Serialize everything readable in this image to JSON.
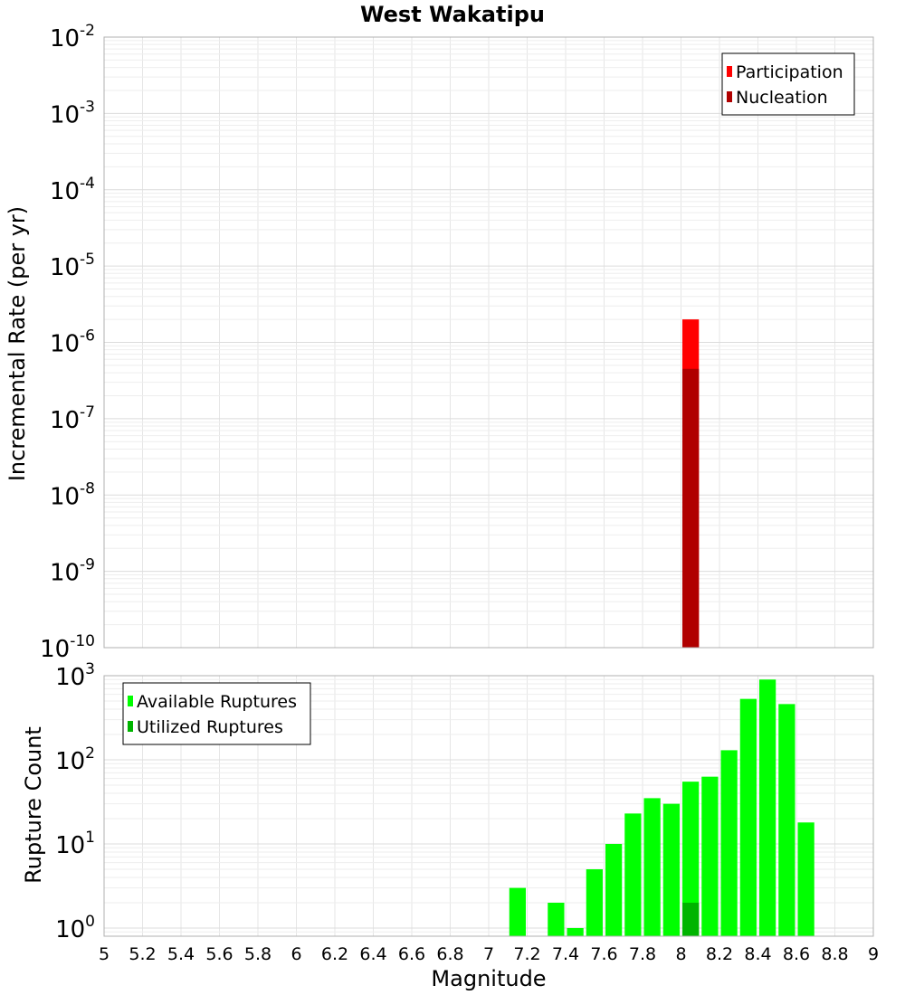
{
  "chart_data": [
    {
      "type": "bar",
      "title": "West Wakatipu",
      "xlabel": "",
      "ylabel": "Incremental Rate (per yr)",
      "y_scale": "log",
      "xlim": [
        5,
        9
      ],
      "ylim": [
        1e-10,
        0.01
      ],
      "bin_width": 0.1,
      "grid": true,
      "legend_position": "top-right",
      "y_ticks": [
        {
          "base": "10",
          "exp": "-10",
          "value": 1e-10
        },
        {
          "base": "10",
          "exp": "-9",
          "value": 1e-09
        },
        {
          "base": "10",
          "exp": "-8",
          "value": 1e-08
        },
        {
          "base": "10",
          "exp": "-7",
          "value": 1e-07
        },
        {
          "base": "10",
          "exp": "-6",
          "value": 1e-06
        },
        {
          "base": "10",
          "exp": "-5",
          "value": 1e-05
        },
        {
          "base": "10",
          "exp": "-4",
          "value": 0.0001
        },
        {
          "base": "10",
          "exp": "-3",
          "value": 0.001
        },
        {
          "base": "10",
          "exp": "-2",
          "value": 0.01
        }
      ],
      "series": [
        {
          "name": "Participation",
          "color": "#ff0000",
          "x": [
            8.05
          ],
          "values": [
            2e-06
          ]
        },
        {
          "name": "Nucleation",
          "color": "#b00000",
          "x": [
            8.05
          ],
          "values": [
            4.5e-07
          ]
        }
      ]
    },
    {
      "type": "bar",
      "title": "",
      "xlabel": "Magnitude",
      "ylabel": "Rupture Count",
      "y_scale": "log",
      "xlim": [
        5,
        9
      ],
      "ylim": [
        0.8,
        1000
      ],
      "bin_width": 0.1,
      "grid": true,
      "legend_position": "top-left",
      "x_ticks": [
        "5",
        "5.2",
        "5.4",
        "5.6",
        "5.8",
        "6",
        "6.2",
        "6.4",
        "6.6",
        "6.8",
        "7",
        "7.2",
        "7.4",
        "7.6",
        "7.8",
        "8",
        "8.2",
        "8.4",
        "8.6",
        "8.8",
        "9"
      ],
      "y_ticks": [
        {
          "base": "10",
          "exp": "0",
          "value": 1
        },
        {
          "base": "10",
          "exp": "1",
          "value": 10
        },
        {
          "base": "10",
          "exp": "2",
          "value": 100
        },
        {
          "base": "10",
          "exp": "3",
          "value": 1000
        }
      ],
      "series": [
        {
          "name": "Available Ruptures",
          "color": "#00ff00",
          "x": [
            7.15,
            7.35,
            7.45,
            7.55,
            7.65,
            7.75,
            7.85,
            7.95,
            8.05,
            8.15,
            8.25,
            8.35,
            8.45,
            8.55,
            8.65
          ],
          "values": [
            3,
            2,
            1,
            5,
            10,
            23,
            35,
            30,
            55,
            63,
            130,
            530,
            900,
            460,
            18
          ]
        },
        {
          "name": "Utilized Ruptures",
          "color": "#00b400",
          "x": [
            8.05
          ],
          "values": [
            2
          ]
        }
      ]
    }
  ]
}
